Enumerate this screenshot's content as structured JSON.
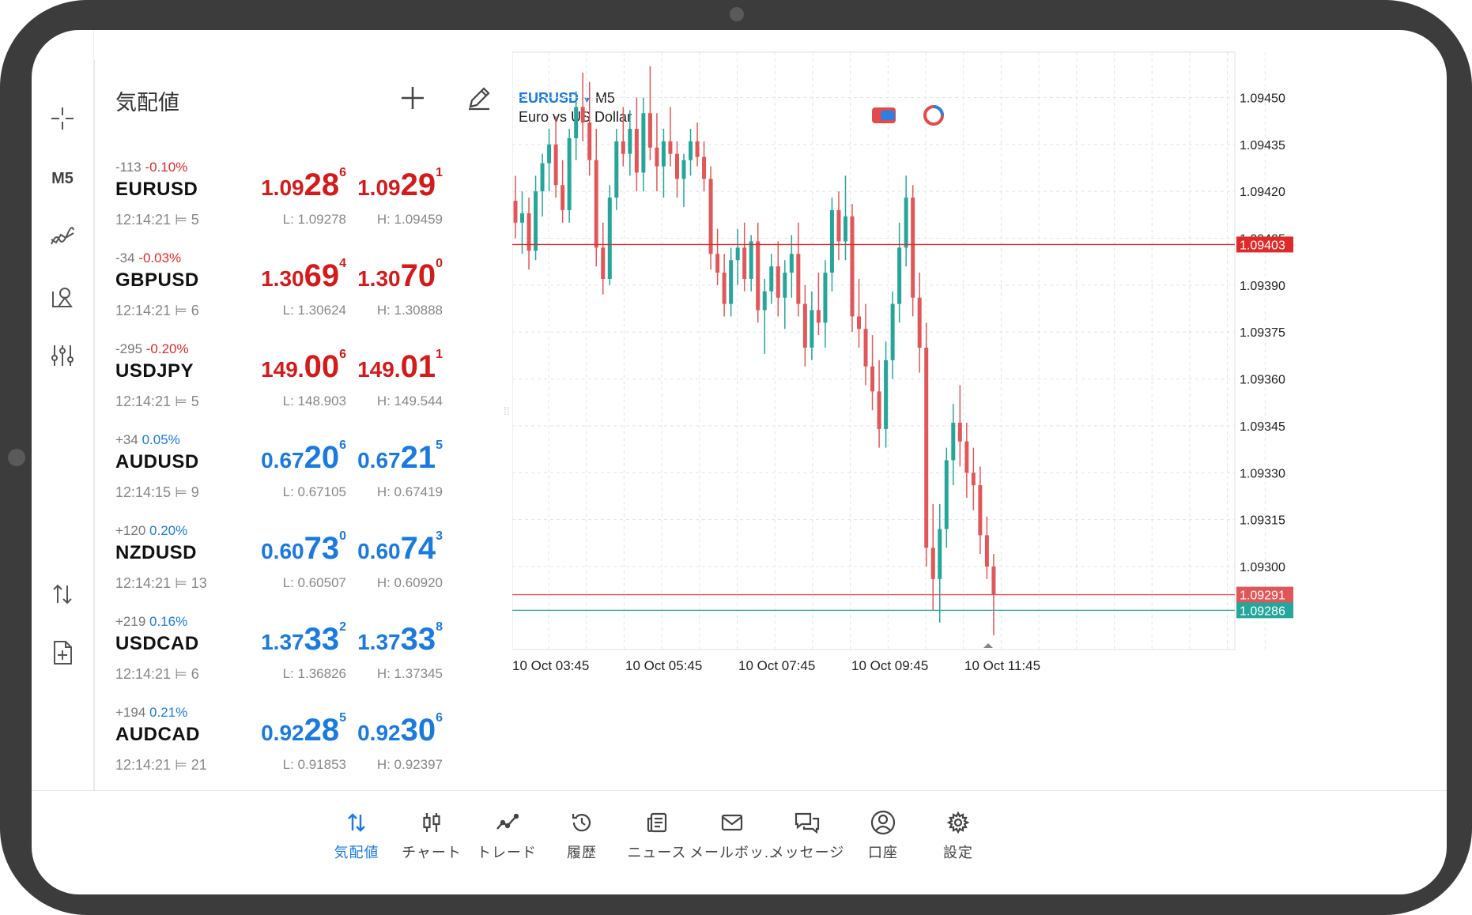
{
  "left_rail": {
    "timeframe": "M5"
  },
  "quotes": {
    "title": "気配値",
    "rows": [
      {
        "change_pts": "-113",
        "change_pct": "-0.10%",
        "direction": "down",
        "symbol": "EURUSD",
        "time": "12:14:21",
        "spread": "5",
        "bid_small": "1.09",
        "bid_big": "28",
        "bid_sup": "6",
        "ask_small": "1.09",
        "ask_big": "29",
        "ask_sup": "1",
        "low": "L: 1.09278",
        "high": "H: 1.09459"
      },
      {
        "change_pts": "-34",
        "change_pct": "-0.03%",
        "direction": "down",
        "symbol": "GBPUSD",
        "time": "12:14:21",
        "spread": "6",
        "bid_small": "1.30",
        "bid_big": "69",
        "bid_sup": "4",
        "ask_small": "1.30",
        "ask_big": "70",
        "ask_sup": "0",
        "low": "L: 1.30624",
        "high": "H: 1.30888"
      },
      {
        "change_pts": "-295",
        "change_pct": "-0.20%",
        "direction": "down",
        "symbol": "USDJPY",
        "time": "12:14:21",
        "spread": "5",
        "bid_small": "149.",
        "bid_big": "00",
        "bid_sup": "6",
        "ask_small": "149.",
        "ask_big": "01",
        "ask_sup": "1",
        "low": "L: 148.903",
        "high": "H: 149.544"
      },
      {
        "change_pts": "+34",
        "change_pct": "0.05%",
        "direction": "up",
        "symbol": "AUDUSD",
        "time": "12:14:15",
        "spread": "9",
        "bid_small": "0.67",
        "bid_big": "20",
        "bid_sup": "6",
        "ask_small": "0.67",
        "ask_big": "21",
        "ask_sup": "5",
        "low": "L: 0.67105",
        "high": "H: 0.67419"
      },
      {
        "change_pts": "+120",
        "change_pct": "0.20%",
        "direction": "up",
        "symbol": "NZDUSD",
        "time": "12:14:21",
        "spread": "13",
        "bid_small": "0.60",
        "bid_big": "73",
        "bid_sup": "0",
        "ask_small": "0.60",
        "ask_big": "74",
        "ask_sup": "3",
        "low": "L: 0.60507",
        "high": "H: 0.60920"
      },
      {
        "change_pts": "+219",
        "change_pct": "0.16%",
        "direction": "up",
        "symbol": "USDCAD",
        "time": "12:14:21",
        "spread": "6",
        "bid_small": "1.37",
        "bid_big": "33",
        "bid_sup": "2",
        "ask_small": "1.37",
        "ask_big": "33",
        "ask_sup": "8",
        "low": "L: 1.36826",
        "high": "H: 1.37345"
      },
      {
        "change_pts": "+194",
        "change_pct": "0.21%",
        "direction": "up",
        "symbol": "AUDCAD",
        "time": "12:14:21",
        "spread": "21",
        "bid_small": "0.92",
        "bid_big": "28",
        "bid_sup": "5",
        "ask_small": "0.92",
        "ask_big": "30",
        "ask_sup": "6",
        "low": "L: 0.91853",
        "high": "H: 0.92397"
      }
    ]
  },
  "chart": {
    "symbol": "EURUSD",
    "timeframe": "M5",
    "description": "Euro vs US Dollar",
    "colors": {
      "up": "#26a69a",
      "down": "#e15759",
      "ask_line": "#e15759",
      "bid_line": "#26a69a",
      "grid": "#e4e4e4"
    }
  },
  "chart_data": {
    "type": "candlestick",
    "title": "",
    "y_ticks": [
      "1.09450",
      "1.09435",
      "1.09420",
      "1.09405",
      "1.09390",
      "1.09375",
      "1.09360",
      "1.09345",
      "1.09330",
      "1.09315",
      "1.09300"
    ],
    "x_ticks": [
      "10 Oct 03:45",
      "10 Oct 05:45",
      "10 Oct 07:45",
      "10 Oct 09:45",
      "10 Oct 11:45"
    ],
    "ylim": [
      1.09278,
      1.09462
    ],
    "price_labels": [
      {
        "value": 1.09403,
        "label": "1.09403",
        "color": "#e02a2a"
      },
      {
        "value": 1.09291,
        "label": "1.09291",
        "color": "#e15759"
      },
      {
        "value": 1.09286,
        "label": "1.09286",
        "color": "#26a69a"
      }
    ],
    "candles": [
      [
        1.09417,
        1.09425,
        1.09405,
        1.0941
      ],
      [
        1.0941,
        1.0942,
        1.094,
        1.09413
      ],
      [
        1.09413,
        1.09418,
        1.09395,
        1.09401
      ],
      [
        1.09401,
        1.09425,
        1.09398,
        1.0942
      ],
      [
        1.0942,
        1.09432,
        1.09412,
        1.09429
      ],
      [
        1.09429,
        1.0944,
        1.0942,
        1.09435
      ],
      [
        1.09435,
        1.09444,
        1.09418,
        1.09422
      ],
      [
        1.09422,
        1.0943,
        1.0941,
        1.09414
      ],
      [
        1.09414,
        1.0944,
        1.0941,
        1.09437
      ],
      [
        1.09437,
        1.09452,
        1.0943,
        1.09447
      ],
      [
        1.09447,
        1.09458,
        1.09436,
        1.09442
      ],
      [
        1.09442,
        1.09455,
        1.09425,
        1.0943
      ],
      [
        1.0943,
        1.0944,
        1.09396,
        1.09402
      ],
      [
        1.09402,
        1.0941,
        1.09387,
        1.09392
      ],
      [
        1.09392,
        1.09422,
        1.0939,
        1.09418
      ],
      [
        1.09418,
        1.0944,
        1.09414,
        1.09436
      ],
      [
        1.09436,
        1.09447,
        1.09428,
        1.09432
      ],
      [
        1.09432,
        1.09446,
        1.09425,
        1.0944
      ],
      [
        1.0944,
        1.0945,
        1.0942,
        1.09426
      ],
      [
        1.09426,
        1.0945,
        1.0942,
        1.09445
      ],
      [
        1.09445,
        1.0946,
        1.0943,
        1.09434
      ],
      [
        1.09434,
        1.09445,
        1.0942,
        1.09428
      ],
      [
        1.09428,
        1.0944,
        1.09418,
        1.09436
      ],
      [
        1.09436,
        1.09447,
        1.09428,
        1.09432
      ],
      [
        1.09432,
        1.09436,
        1.09418,
        1.09424
      ],
      [
        1.09424,
        1.09432,
        1.09415,
        1.0943
      ],
      [
        1.0943,
        1.0944,
        1.09425,
        1.09436
      ],
      [
        1.09436,
        1.09442,
        1.09428,
        1.09431
      ],
      [
        1.09431,
        1.09436,
        1.0942,
        1.09424
      ],
      [
        1.09424,
        1.09428,
        1.09395,
        1.094
      ],
      [
        1.094,
        1.09408,
        1.0939,
        1.09394
      ],
      [
        1.09394,
        1.094,
        1.0938,
        1.09384
      ],
      [
        1.09384,
        1.09402,
        1.0938,
        1.09398
      ],
      [
        1.09398,
        1.09408,
        1.0939,
        1.09402
      ],
      [
        1.09402,
        1.0941,
        1.09388,
        1.09392
      ],
      [
        1.09392,
        1.09406,
        1.09388,
        1.09404
      ],
      [
        1.09404,
        1.0941,
        1.09378,
        1.09382
      ],
      [
        1.09382,
        1.09392,
        1.09368,
        1.09388
      ],
      [
        1.09388,
        1.094,
        1.09384,
        1.09396
      ],
      [
        1.09396,
        1.09404,
        1.0938,
        1.09386
      ],
      [
        1.09386,
        1.09398,
        1.09376,
        1.09394
      ],
      [
        1.09394,
        1.09406,
        1.09386,
        1.094
      ],
      [
        1.094,
        1.0941,
        1.0938,
        1.09384
      ],
      [
        1.09384,
        1.0939,
        1.09364,
        1.0937
      ],
      [
        1.0937,
        1.09388,
        1.09366,
        1.09382
      ],
      [
        1.09382,
        1.09394,
        1.09374,
        1.09378
      ],
      [
        1.09378,
        1.09398,
        1.0937,
        1.09394
      ],
      [
        1.09394,
        1.09418,
        1.09388,
        1.09414
      ],
      [
        1.09414,
        1.0942,
        1.09398,
        1.09404
      ],
      [
        1.09404,
        1.09425,
        1.09398,
        1.09412
      ],
      [
        1.09412,
        1.09416,
        1.09375,
        1.0938
      ],
      [
        1.0938,
        1.09392,
        1.0937,
        1.09376
      ],
      [
        1.09376,
        1.09384,
        1.09358,
        1.09364
      ],
      [
        1.09364,
        1.09374,
        1.0935,
        1.09356
      ],
      [
        1.09356,
        1.09366,
        1.09338,
        1.09344
      ],
      [
        1.09344,
        1.09372,
        1.09338,
        1.09366
      ],
      [
        1.09366,
        1.09388,
        1.0936,
        1.09384
      ],
      [
        1.09384,
        1.0941,
        1.09378,
        1.09402
      ],
      [
        1.09402,
        1.09425,
        1.09396,
        1.09418
      ],
      [
        1.09418,
        1.09422,
        1.0938,
        1.09386
      ],
      [
        1.09386,
        1.09394,
        1.09362,
        1.0937
      ],
      [
        1.0937,
        1.09378,
        1.093,
        1.09306
      ],
      [
        1.09306,
        1.0932,
        1.09286,
        1.09296
      ],
      [
        1.09296,
        1.0932,
        1.09282,
        1.09312
      ],
      [
        1.09312,
        1.09338,
        1.09306,
        1.09334
      ],
      [
        1.09334,
        1.09352,
        1.09326,
        1.09346
      ],
      [
        1.09346,
        1.09358,
        1.09332,
        1.0934
      ],
      [
        1.0934,
        1.09346,
        1.09322,
        1.0933
      ],
      [
        1.0933,
        1.09338,
        1.09318,
        1.09326
      ],
      [
        1.09326,
        1.09332,
        1.09304,
        1.0931
      ],
      [
        1.0931,
        1.09316,
        1.09296,
        1.093
      ],
      [
        1.093,
        1.09304,
        1.09278,
        1.09291
      ]
    ]
  },
  "bottom_nav": [
    {
      "label": "気配値",
      "icon": "quotes-arrows-icon",
      "active": true
    },
    {
      "label": "チャート",
      "icon": "candles-icon",
      "active": false
    },
    {
      "label": "トレード",
      "icon": "trade-line-icon",
      "active": false
    },
    {
      "label": "履歴",
      "icon": "history-clock-icon",
      "active": false
    },
    {
      "label": "ニュース",
      "icon": "news-icon",
      "active": false
    },
    {
      "label": "メールボッ...",
      "icon": "mail-icon",
      "active": false
    },
    {
      "label": "メッセージ",
      "icon": "chat-bubbles-icon",
      "active": false
    },
    {
      "label": "口座",
      "icon": "account-icon",
      "active": false
    },
    {
      "label": "設定",
      "icon": "settings-gear-icon",
      "active": false
    }
  ]
}
